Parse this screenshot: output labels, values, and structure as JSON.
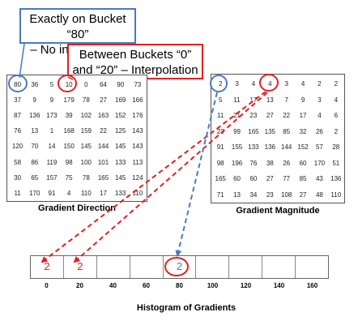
{
  "callouts": {
    "exact_line1": "Exactly on Bucket “80”",
    "exact_line2": "– No interpolation",
    "interp_line1": "Between Buckets “0”",
    "interp_line2": "and “20” – Interpolation"
  },
  "gradient_direction": {
    "caption": "Gradient Direction",
    "rows": [
      [
        "80",
        "36",
        "5",
        "10",
        "0",
        "64",
        "90",
        "73"
      ],
      [
        "37",
        "9",
        "9",
        "179",
        "78",
        "27",
        "169",
        "166"
      ],
      [
        "87",
        "136",
        "173",
        "39",
        "102",
        "163",
        "152",
        "176"
      ],
      [
        "76",
        "13",
        "1",
        "168",
        "159",
        "22",
        "125",
        "143"
      ],
      [
        "120",
        "70",
        "14",
        "150",
        "145",
        "144",
        "145",
        "143"
      ],
      [
        "58",
        "86",
        "119",
        "98",
        "100",
        "101",
        "133",
        "113"
      ],
      [
        "30",
        "65",
        "157",
        "75",
        "78",
        "165",
        "145",
        "124"
      ],
      [
        "11",
        "170",
        "91",
        "4",
        "110",
        "17",
        "133",
        "110"
      ]
    ]
  },
  "gradient_magnitude": {
    "caption": "Gradient Magnitude",
    "rows": [
      [
        "2",
        "3",
        "4",
        "4",
        "3",
        "4",
        "2",
        "2"
      ],
      [
        "5",
        "11",
        "17",
        "13",
        "7",
        "9",
        "3",
        "4"
      ],
      [
        "11",
        "21",
        "23",
        "27",
        "22",
        "17",
        "4",
        "6"
      ],
      [
        "23",
        "99",
        "165",
        "135",
        "85",
        "32",
        "26",
        "2"
      ],
      [
        "91",
        "155",
        "133",
        "136",
        "144",
        "152",
        "57",
        "28"
      ],
      [
        "98",
        "196",
        "76",
        "38",
        "26",
        "60",
        "170",
        "51"
      ],
      [
        "165",
        "60",
        "60",
        "27",
        "77",
        "85",
        "43",
        "136"
      ],
      [
        "71",
        "13",
        "34",
        "23",
        "108",
        "27",
        "48",
        "110"
      ]
    ]
  },
  "histogram": {
    "title": "Histogram of Gradients",
    "bins": [
      "0",
      "20",
      "40",
      "60",
      "80",
      "100",
      "120",
      "140",
      "160"
    ],
    "values": [
      "2",
      "2",
      "",
      "",
      "2",
      "",
      "",
      "",
      ""
    ],
    "value_colors": [
      "#e21f1f",
      "#e21f1f",
      "",
      "",
      "#4a78c2",
      "",
      "",
      "",
      ""
    ]
  },
  "colors": {
    "blue": "#4a78c2",
    "red": "#e21f1f"
  }
}
